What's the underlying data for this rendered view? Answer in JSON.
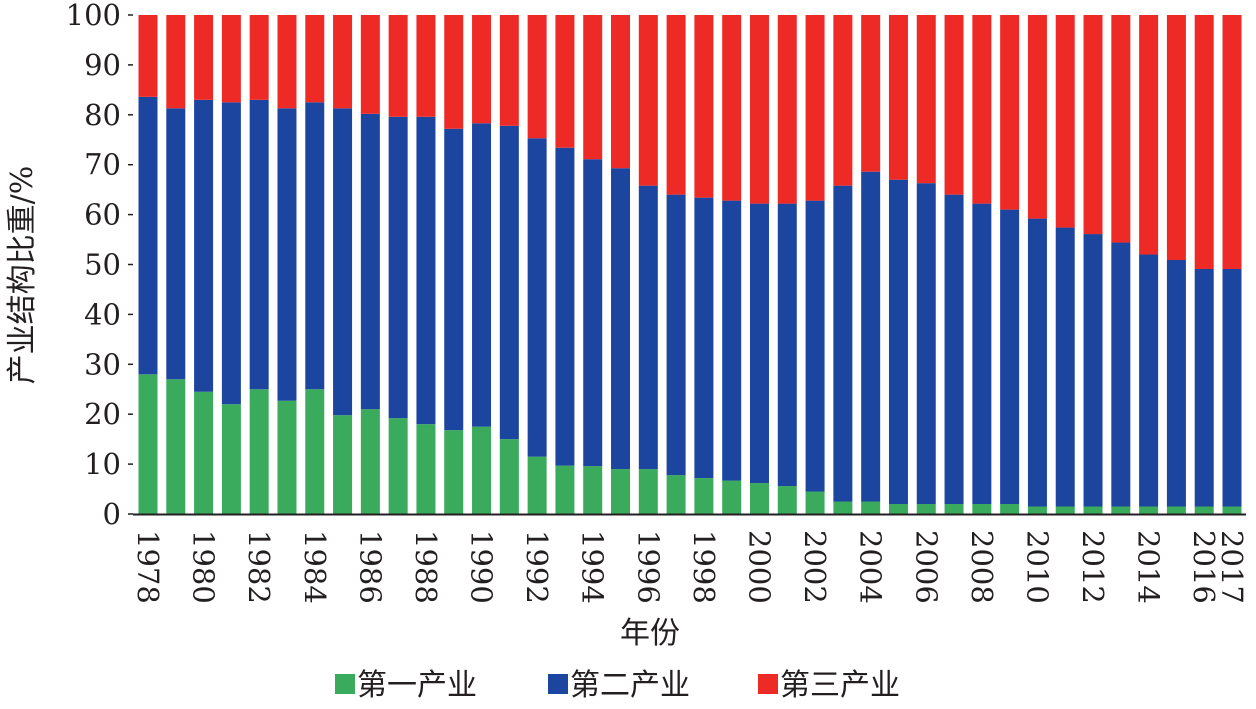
{
  "chart_data": {
    "type": "bar",
    "stacked": true,
    "title": "",
    "xlabel": "年份",
    "ylabel": "产业结构比重/%",
    "ylim": [
      0,
      100
    ],
    "yticks": [
      0,
      10,
      20,
      30,
      40,
      50,
      60,
      70,
      80,
      90,
      100
    ],
    "grid": false,
    "legend_position": "bottom",
    "categories": [
      1978,
      1979,
      1980,
      1981,
      1982,
      1983,
      1984,
      1985,
      1986,
      1987,
      1988,
      1989,
      1990,
      1991,
      1992,
      1993,
      1994,
      1995,
      1996,
      1997,
      1998,
      1999,
      2000,
      2001,
      2002,
      2003,
      2004,
      2005,
      2006,
      2007,
      2008,
      2009,
      2010,
      2011,
      2012,
      2013,
      2014,
      2015,
      2016,
      2017
    ],
    "xtick_labels": [
      "1978",
      "1980",
      "1982",
      "1984",
      "1986",
      "1988",
      "1990",
      "1992",
      "1994",
      "1996",
      "1998",
      "2000",
      "2002",
      "2004",
      "2006",
      "2008",
      "2010",
      "2012",
      "2014",
      "2016",
      "2017"
    ],
    "series": [
      {
        "name": "第一产业",
        "color": "#3aaa5c",
        "values": [
          28,
          27,
          24.5,
          22,
          25,
          22.7,
          25,
          19.8,
          21,
          19.2,
          18,
          16.8,
          17.5,
          15,
          11.5,
          9.7,
          9.6,
          9,
          9,
          7.8,
          7.2,
          6.7,
          6.2,
          5.6,
          4.5,
          2.5,
          2.5,
          2,
          2,
          2,
          2,
          2,
          1.5,
          1.5,
          1.5,
          1.5,
          1.5,
          1.5,
          1.5,
          1.5
        ]
      },
      {
        "name": "第二产业",
        "color": "#1c45a0",
        "values": [
          55.6,
          54.3,
          58.5,
          60.5,
          58,
          58.6,
          57.5,
          61.5,
          59.2,
          60.4,
          61.6,
          60.4,
          60.8,
          62.8,
          63.8,
          63.7,
          61.5,
          60.3,
          56.8,
          56.2,
          56.2,
          56.1,
          56,
          56.6,
          58.3,
          63.3,
          66.1,
          65,
          64.3,
          62,
          60.2,
          59,
          57.7,
          55.9,
          54.6,
          52.9,
          50.5,
          49.4,
          47.6,
          47.6
        ]
      },
      {
        "name": "第三产业",
        "color": "#ee2a27",
        "values": [
          16.4,
          18.7,
          17,
          17.5,
          17,
          18.7,
          17.5,
          18.7,
          19.8,
          20.4,
          20.4,
          22.8,
          21.7,
          22.2,
          24.7,
          26.6,
          28.9,
          30.7,
          34.2,
          36,
          36.6,
          37.2,
          37.8,
          37.8,
          37.2,
          34.2,
          31.4,
          33,
          33.7,
          36,
          37.8,
          39,
          40.8,
          42.6,
          43.9,
          45.6,
          48,
          49.1,
          50.9,
          50.9
        ]
      }
    ]
  }
}
